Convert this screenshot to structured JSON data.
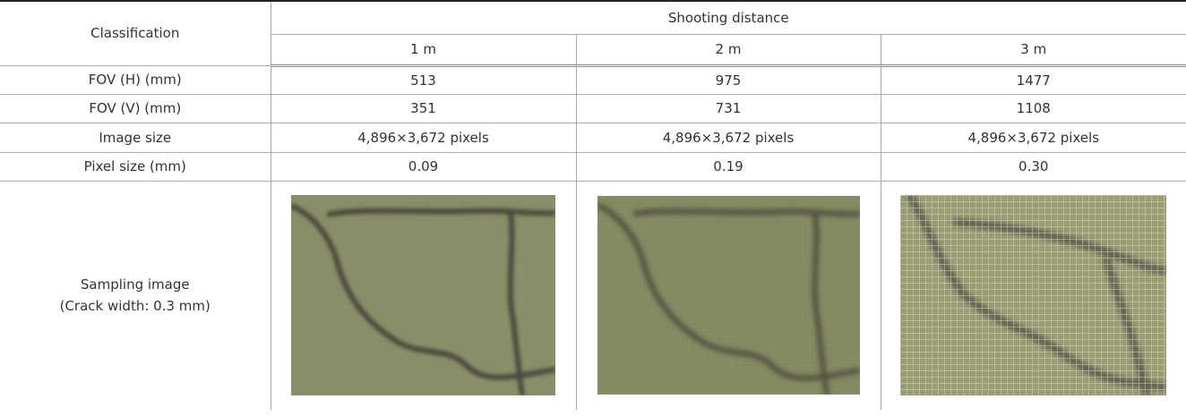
{
  "table": {
    "header": {
      "classification": "Classification",
      "group": "Shooting distance",
      "distances": [
        "1 m",
        "2 m",
        "3 m"
      ]
    },
    "rows": [
      {
        "label": "FOV (H) (mm)",
        "cells": [
          "513",
          "975",
          "1477"
        ]
      },
      {
        "label": "FOV (V) (mm)",
        "cells": [
          "351",
          "731",
          "1108"
        ]
      },
      {
        "label": "Image size",
        "cells": [
          "4,896×3,672 pixels",
          "4,896×3,672 pixels",
          "4,896×3,672 pixels"
        ]
      },
      {
        "label": "Pixel size (mm)",
        "cells": [
          "0.09",
          "0.19",
          "0.30"
        ]
      }
    ],
    "sampling": {
      "label": [
        "Sampling image",
        "(Crack width: 0.3 mm)"
      ]
    }
  }
}
